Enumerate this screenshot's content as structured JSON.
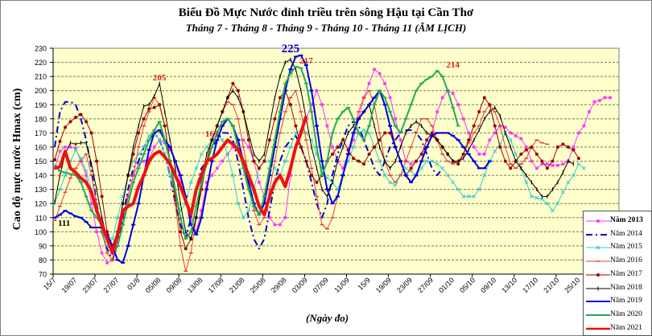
{
  "chart_data": {
    "type": "line",
    "title": "Biểu Đồ Mực Nước đỉnh triều trên sông Hậu tại Cần Thơ",
    "subtitle": "Tháng 7 - Tháng 8 - Tháng 9 - Tháng 10 - Tháng 11 (ÂM LỊCH)",
    "ylabel": "Cao độ mực nước Hmax (cm)",
    "xlabel": "(Ngày đo)",
    "ylim": [
      70,
      230
    ],
    "yticks": [
      70,
      80,
      90,
      100,
      110,
      120,
      130,
      140,
      150,
      160,
      170,
      180,
      190,
      200,
      210,
      220,
      230
    ],
    "grid": true,
    "legend_position": "bottom-right",
    "x_tick_labels": [
      "15/7",
      "19/07",
      "23/07",
      "27/07",
      "01/8",
      "05/08",
      "09/08",
      "13/08",
      "17/08",
      "21/08",
      "25/08",
      "29/08",
      "03/09",
      "07/09",
      "11/09",
      "15/9",
      "19/09",
      "23/09",
      "27/09",
      "01/10",
      "05/10",
      "09/10",
      "13/10",
      "17/10",
      "21/10",
      "25/10"
    ],
    "points_per_label": 4,
    "annotations": [
      {
        "text": "225",
        "x_index": 45,
        "y": 225,
        "color": "#0000cc"
      },
      {
        "text": "217",
        "x_index": 48,
        "y": 217,
        "color": "#e02020"
      },
      {
        "text": "205",
        "x_index": 20,
        "y": 205,
        "color": "#e02020"
      },
      {
        "text": "165",
        "x_index": 30,
        "y": 165,
        "color": "#e02020"
      },
      {
        "text": "214",
        "x_index": 76,
        "y": 214,
        "color": "#e02020"
      },
      {
        "text": "111",
        "x_index": 0,
        "y": 111,
        "color": "#000000"
      }
    ],
    "series": [
      {
        "name": "Năm 2013",
        "color": "#ff33ff",
        "width": 1,
        "dash": "",
        "marker": "square",
        "bold_label": true,
        "start": 0,
        "values": [
          145,
          157,
          160,
          160,
          159,
          150,
          140,
          120,
          100,
          85,
          78,
          80,
          95,
          110,
          125,
          140,
          148,
          150,
          152,
          160,
          165,
          163,
          158,
          150,
          135,
          120,
          110,
          100,
          115,
          135,
          140,
          145,
          150,
          155,
          160,
          165,
          165,
          160,
          150,
          135,
          125,
          110,
          105,
          105,
          110,
          140,
          160,
          170,
          180,
          190,
          200,
          190,
          175,
          160,
          150,
          145,
          155,
          165,
          180,
          195,
          205,
          215,
          212,
          205,
          195,
          180,
          165,
          150,
          148,
          150,
          155,
          160,
          170,
          185,
          195,
          200,
          198,
          190,
          180,
          170,
          160,
          155,
          155,
          165,
          170,
          175,
          174,
          170,
          168,
          166,
          160,
          150,
          145,
          148,
          148,
          147,
          147,
          148,
          150,
          160,
          170,
          175,
          185,
          192,
          193,
          195,
          195
        ]
      },
      {
        "name": "Năm 2014",
        "color": "#0000cc",
        "width": 2,
        "dash": "8,4,2,4",
        "marker": "",
        "bold_label": false,
        "start": 0,
        "values": [
          160,
          185,
          192,
          192,
          190,
          180,
          165,
          145,
          120,
          100,
          88,
          80,
          90,
          110,
          130,
          145,
          150,
          160,
          165,
          170,
          165,
          155,
          140,
          120,
          105,
          95,
          110,
          130,
          145,
          150,
          160,
          165,
          170,
          170,
          165,
          150,
          130,
          110,
          95,
          88,
          95,
          115,
          135,
          150,
          160,
          165,
          168,
          160,
          150,
          135,
          120,
          110,
          120,
          140,
          155,
          165,
          175,
          178,
          175,
          165,
          155,
          145,
          140,
          150,
          160,
          165,
          170,
          172,
          172,
          170,
          165,
          155,
          145,
          140,
          145
        ]
      },
      {
        "name": "Năm 2015",
        "color": "#33cccc",
        "width": 1,
        "dash": "",
        "marker": "x",
        "bold_label": false,
        "start": 0,
        "values": [
          120,
          130,
          140,
          150,
          158,
          152,
          143,
          130,
          115,
          100,
          90,
          95,
          110,
          125,
          140,
          150,
          155,
          160,
          168,
          170,
          165,
          155,
          140,
          125,
          115,
          120,
          135,
          145,
          155,
          160,
          165,
          168,
          165,
          155,
          140,
          120,
          110,
          115,
          130,
          145,
          150,
          150,
          145,
          140,
          150,
          160,
          170,
          172,
          170,
          165,
          155,
          145,
          138,
          135,
          130,
          140,
          150,
          160,
          170,
          172,
          170,
          160,
          150,
          140,
          135,
          133,
          140,
          145,
          143,
          140,
          145,
          150,
          150,
          148,
          145,
          140,
          135,
          130,
          125,
          125,
          125,
          130,
          140,
          150,
          157,
          162,
          170,
          165,
          155,
          145,
          135,
          125,
          124,
          123,
          120,
          115,
          120,
          128,
          135,
          140,
          148,
          145
        ]
      },
      {
        "name": "Năm 2016",
        "color": "#e04040",
        "width": 1,
        "dash": "",
        "marker": "tick",
        "bold_label": false,
        "start": 0,
        "values": [
          108,
          118,
          128,
          138,
          145,
          150,
          155,
          140,
          120,
          100,
          85,
          80,
          90,
          105,
          125,
          140,
          160,
          175,
          185,
          195,
          190,
          175,
          150,
          120,
          90,
          72,
          85,
          110,
          135,
          150,
          165,
          175,
          185,
          192,
          190,
          180,
          160,
          140,
          115,
          105,
          110,
          130,
          150,
          170,
          185,
          195,
          200,
          185,
          165,
          145,
          125,
          105,
          102,
          110,
          125,
          140,
          155,
          170,
          185,
          195,
          200,
          190,
          170,
          150,
          140,
          135,
          140,
          150,
          160,
          170,
          180,
          180,
          175,
          165,
          155,
          150,
          148,
          150,
          155,
          163,
          170,
          175,
          185,
          190,
          185,
          175,
          160,
          148,
          145,
          148,
          152,
          160,
          165,
          163,
          162
        ]
      },
      {
        "name": "Năm 2017",
        "color": "#990000",
        "width": 1,
        "dash": "",
        "marker": "dot",
        "bold_label": false,
        "start": 0,
        "values": [
          151,
          164,
          174,
          178,
          181,
          183,
          178,
          170,
          150,
          125,
          100,
          90,
          100,
          120,
          140,
          155,
          170,
          180,
          187,
          188,
          190,
          175,
          150,
          125,
          100,
          88,
          95,
          110,
          130,
          150,
          165,
          175,
          185,
          195,
          205,
          200,
          185,
          165,
          150,
          145,
          150,
          165,
          180,
          195,
          200,
          190,
          175,
          160,
          150,
          140,
          135,
          140,
          150,
          155,
          160,
          165,
          158,
          152,
          150,
          148,
          155,
          160,
          165,
          170,
          170,
          160,
          150,
          140,
          145,
          150,
          155,
          165,
          170,
          165,
          160,
          155,
          150,
          148,
          155,
          165,
          175,
          185,
          195,
          190,
          175,
          160,
          150,
          145,
          150,
          155,
          158,
          160,
          155,
          150,
          145,
          150,
          160,
          162,
          160,
          158,
          152
        ]
      },
      {
        "name": "Năm 2018",
        "color": "#000000",
        "width": 1,
        "dash": "",
        "marker": "plus",
        "bold_label": false,
        "start": 0,
        "values": [
          121,
          140,
          155,
          163,
          162,
          163,
          163,
          148,
          130,
          110,
          95,
          85,
          100,
          120,
          140,
          160,
          175,
          189,
          190,
          196,
          205,
          185,
          165,
          145,
          120,
          100,
          95,
          110,
          135,
          155,
          165,
          175,
          185,
          195,
          200,
          195,
          185,
          170,
          155,
          150,
          155,
          175,
          195,
          210,
          220,
          222,
          215,
          200,
          180,
          160,
          145,
          130,
          125,
          135,
          150,
          160,
          170,
          175,
          180,
          185,
          190,
          175,
          160,
          150,
          145,
          150,
          160,
          170,
          175,
          178,
          175,
          170,
          168,
          165,
          160,
          155,
          150,
          150,
          152,
          158,
          165,
          172,
          180,
          185,
          188,
          182,
          170,
          160,
          150,
          145,
          140,
          135,
          130,
          125,
          125,
          130,
          135,
          142,
          150,
          148
        ]
      },
      {
        "name": "Năm 2019",
        "color": "#0000dd",
        "width": 2,
        "dash": "",
        "marker": "bar",
        "bold_label": false,
        "start": 0,
        "values": [
          110,
          112,
          115,
          113,
          111,
          110,
          107,
          103,
          103,
          103,
          98,
          90,
          80,
          78,
          90,
          105,
          120,
          140,
          158,
          170,
          172,
          165,
          160,
          150,
          140,
          125,
          105,
          98,
          110,
          130,
          150,
          165,
          175,
          180,
          175,
          165,
          150,
          135,
          120,
          112,
          120,
          140,
          160,
          180,
          200,
          215,
          224,
          225,
          218,
          200,
          175,
          150,
          130,
          120,
          125,
          140,
          155,
          170,
          180,
          185,
          190,
          195,
          200,
          190,
          175,
          160,
          150,
          140,
          135,
          140,
          150,
          160,
          168,
          170,
          170,
          170,
          168,
          165,
          160,
          155,
          150,
          145,
          145,
          150
        ]
      },
      {
        "name": "Năm 2020",
        "color": "#22aa55",
        "width": 2,
        "dash": "",
        "marker": "tick",
        "bold_label": false,
        "start": 0,
        "values": [
          147,
          143,
          142,
          141,
          140,
          135,
          125,
          115,
          110,
          105,
          95,
          85,
          90,
          105,
          120,
          135,
          145,
          155,
          165,
          172,
          178,
          165,
          150,
          130,
          110,
          95,
          100,
          118,
          135,
          148,
          160,
          170,
          178,
          180,
          175,
          160,
          145,
          130,
          118,
          112,
          125,
          145,
          165,
          185,
          205,
          212,
          217,
          216,
          205,
          185,
          160,
          140,
          150,
          170,
          180,
          185,
          188,
          180,
          170,
          165,
          175,
          190,
          200,
          195,
          185,
          175,
          170,
          180,
          190,
          200,
          205,
          208,
          210,
          214,
          210,
          200,
          188,
          175
        ]
      },
      {
        "name": "Năm 2021",
        "color": "#ee1111",
        "width": 4,
        "dash": "",
        "marker": "",
        "bold_label": false,
        "start": 0,
        "values": [
          145,
          146,
          157,
          145,
          142,
          138,
          135,
          128,
          115,
          105,
          95,
          85,
          98,
          115,
          118,
          120,
          132,
          140,
          150,
          155,
          157,
          153,
          148,
          140,
          132,
          122,
          112,
          130,
          140,
          150,
          152,
          155,
          160,
          165,
          162,
          158,
          150,
          140,
          130,
          118,
          112,
          125,
          135,
          140,
          132,
          145,
          160,
          170,
          182
        ]
      }
    ]
  }
}
